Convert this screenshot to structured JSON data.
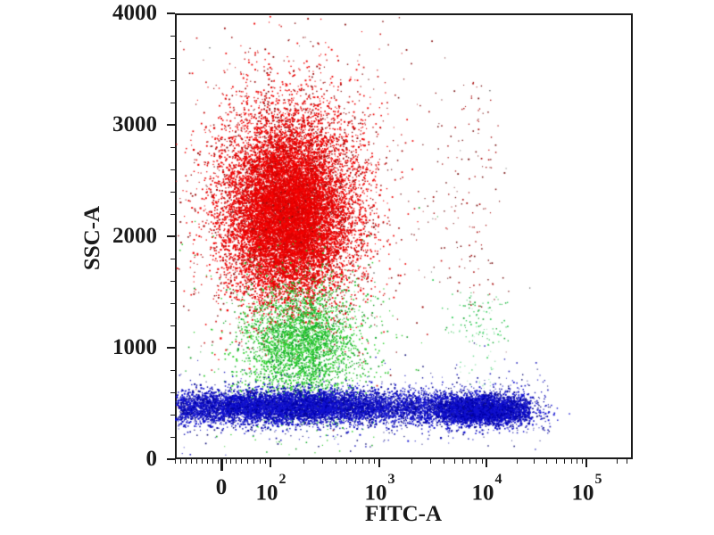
{
  "figure": {
    "background": "#ffffff",
    "frame_color": "#1a1a1a",
    "text_color": "#1a1a1a"
  },
  "chart_data": {
    "type": "scatter",
    "subtype": "flow-cytometry-dot-plot",
    "title": "",
    "xlabel": "FITC-A",
    "ylabel": "SSC-A",
    "x_scale": "biexponential-logicle",
    "y_scale": "linear",
    "ylim": [
      0,
      4000
    ],
    "grid": false,
    "legend": false,
    "y_axis": {
      "major_ticks": [
        {
          "value": 0,
          "label": "0"
        },
        {
          "value": 1000,
          "label": "1000"
        },
        {
          "value": 2000,
          "label": "2000"
        },
        {
          "value": 3000,
          "label": "3000"
        },
        {
          "value": 4000,
          "label": "4000"
        }
      ],
      "minor_step": 200,
      "max": 4000
    },
    "x_axis": {
      "major_ticks": [
        {
          "f": 0.1014,
          "label": "0",
          "zero": true
        },
        {
          "f": 0.2086,
          "base": "10",
          "sup": "2"
        },
        {
          "f": 0.4464,
          "base": "10",
          "sup": "3"
        },
        {
          "f": 0.6803,
          "base": "10",
          "sup": "4"
        },
        {
          "f": 0.8986,
          "base": "10",
          "sup": "5"
        }
      ],
      "minor_ticks_f": [
        0.0,
        0.012,
        0.023,
        0.035,
        0.047,
        0.058,
        0.07,
        0.082,
        0.094,
        0.111,
        0.121,
        0.133,
        0.144,
        0.158,
        0.172,
        0.185,
        0.197,
        0.281,
        0.322,
        0.351,
        0.374,
        0.394,
        0.409,
        0.423,
        0.435,
        0.517,
        0.558,
        0.587,
        0.61,
        0.628,
        0.643,
        0.657,
        0.671,
        0.747,
        0.784,
        0.811,
        0.832,
        0.85,
        0.866,
        0.877,
        0.889,
        0.965,
        0.986
      ]
    },
    "populations": [
      {
        "id": "speckle-noise",
        "approx": "sparse dark events across plot",
        "n": 40,
        "dist": "box",
        "x0": 0.03,
        "x1": 0.8,
        "y0": 0.05,
        "y1": 0.93,
        "size": 1.2,
        "color": "#555555",
        "color2": "#884444",
        "mix": 0.4
      },
      {
        "id": "red-main",
        "approx": "FITC ~10^2, SSC 1500-3300",
        "n": 8000,
        "dist": "gauss",
        "cx": 0.2515,
        "cy": 0.42,
        "sx": 0.082,
        "sy": 0.118,
        "size": 1.5,
        "color": "#ee0000",
        "color2": "#990000",
        "mix": 0.25
      },
      {
        "id": "red-core",
        "approx": "dense core FITC ~10^2, SSC ~1800-2800",
        "n": 6500,
        "dist": "gauss",
        "cx": 0.246,
        "cy": 0.46,
        "sx": 0.06,
        "sy": 0.085,
        "size": 1.8,
        "color": "#f40000",
        "color2": "#dd0000",
        "mix": 0.5
      },
      {
        "id": "red-halo",
        "approx": "sparse outliers around red cluster",
        "n": 650,
        "dist": "gauss",
        "cx": 0.2515,
        "cy": 0.42,
        "sx": 0.135,
        "sy": 0.19,
        "size": 1.4,
        "color": "#cc2222",
        "color2": "#881111",
        "mix": 0.5
      },
      {
        "id": "red-column-1e4",
        "approx": "sparse red trail at FITC ~10^4, SSC 1400-3300",
        "n": 110,
        "dist": "vband",
        "cx": 0.661,
        "sx": 0.033,
        "y0": 0.155,
        "y1": 0.66,
        "size": 1.4,
        "color": "#aa1111",
        "color2": "#771111",
        "mix": 0.5
      },
      {
        "id": "red-sparse-mid",
        "approx": "scattered events FITC 10^3-10^3.7",
        "n": 45,
        "dist": "box",
        "x0": 0.45,
        "x1": 0.62,
        "y0": 0.16,
        "y1": 0.6,
        "size": 1.3,
        "color": "#aa2222",
        "color2": "#772222",
        "mix": 0.5
      },
      {
        "id": "green-main",
        "approx": "FITC ~2x10^2, SSC ~800-1400",
        "n": 2600,
        "dist": "gauss",
        "cx": 0.277,
        "cy": 0.745,
        "sx": 0.062,
        "sy": 0.065,
        "size": 1.5,
        "color": "#2ed12e",
        "color2": "#0faa2a",
        "mix": 0.4
      },
      {
        "id": "green-halo",
        "approx": "sparse green outliers",
        "n": 550,
        "dist": "gauss",
        "cx": 0.277,
        "cy": 0.735,
        "sx": 0.1,
        "sy": 0.115,
        "size": 1.4,
        "color": "#2ec82e",
        "color2": "#119922",
        "mix": 0.4
      },
      {
        "id": "green-right-1e4",
        "approx": "small green cluster FITC ~10^4, SSC ~1200-1500",
        "n": 85,
        "dist": "gauss",
        "cx": 0.661,
        "cy": 0.695,
        "sx": 0.037,
        "sy": 0.042,
        "size": 1.4,
        "color": "#2ecc55",
        "color2": "#15aa33",
        "mix": 0.4
      },
      {
        "id": "green-right-tail",
        "approx": "faint trail below 10^4 green cluster",
        "n": 50,
        "dist": "box",
        "x0": 0.62,
        "x1": 0.7,
        "y0": 0.63,
        "y1": 0.85,
        "size": 1.2,
        "color": "#77dd99",
        "color2": "#aae6bb",
        "mix": 0.4
      },
      {
        "id": "blue-band",
        "approx": "SSC 350-550 band across FITC range",
        "n": 5200,
        "dist": "band",
        "x0": 0.012,
        "x1": 0.775,
        "cy": 0.884,
        "sy": 0.019,
        "size": 1.5,
        "color": "#1515cc",
        "color2": "#000099",
        "mix": 0.35
      },
      {
        "id": "blue-left-dense",
        "approx": "dense blue FITC -10^2..4x10^2, SSC ~450",
        "n": 3400,
        "dist": "gauss",
        "cx": 0.245,
        "cy": 0.882,
        "sx": 0.14,
        "sy": 0.018,
        "size": 1.7,
        "color": "#1111d0",
        "color2": "#0000aa",
        "mix": 0.35
      },
      {
        "id": "blue-right-dense",
        "approx": "dense blue FITC ~10^4, SSC ~430",
        "n": 2500,
        "dist": "gauss",
        "cx": 0.665,
        "cy": 0.892,
        "sx": 0.052,
        "sy": 0.016,
        "size": 1.7,
        "color": "#1111d0",
        "color2": "#0000aa",
        "mix": 0.35
      },
      {
        "id": "blue-halo",
        "approx": "sparse blue above/below band",
        "n": 750,
        "dist": "band",
        "x0": 0.005,
        "x1": 0.82,
        "cy": 0.884,
        "sy": 0.042,
        "size": 1.3,
        "color": "#2222bb",
        "color2": "#111177",
        "mix": 0.4
      }
    ]
  }
}
